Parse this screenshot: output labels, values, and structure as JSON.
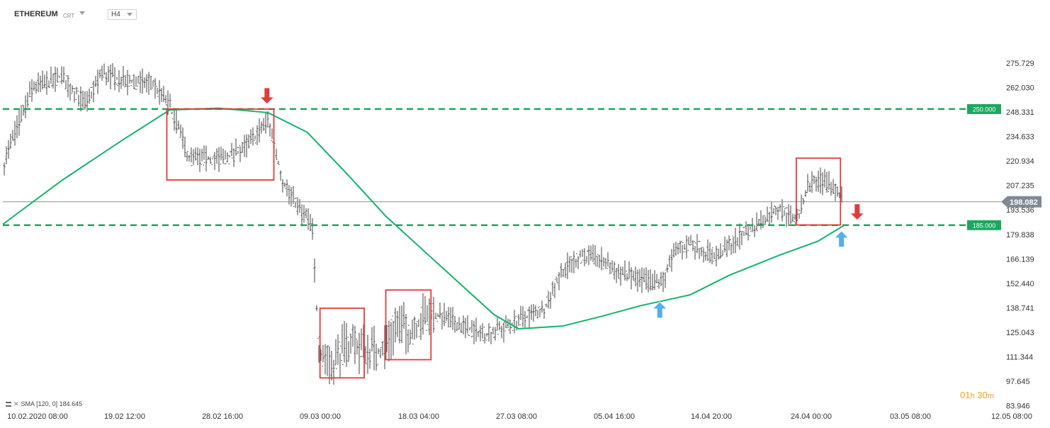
{
  "header": {
    "symbol": "ETHEREUM",
    "source": "CRT",
    "timeframe": "H4"
  },
  "indicator": {
    "label": "SMA",
    "params": "[120, 0]",
    "value": "184.645"
  },
  "timer": {
    "hours": "01",
    "hours_unit": "h",
    "minutes": "30",
    "minutes_unit": "m"
  },
  "colors": {
    "candles": "#404040",
    "sma": "#14b36b",
    "levels": "#1aa85f",
    "boxes": "#e23b3b",
    "arrow_up": "#55aef0",
    "arrow_down": "#e23b3b",
    "timer": "#f0a020"
  },
  "chart_data": {
    "type": "candlestick",
    "instrument": "ETHEREUM",
    "timeframe": "H4",
    "ylim": [
      83.946,
      289.428
    ],
    "y_ticks": [
      "275.729",
      "262.030",
      "248.331",
      "234.633",
      "220.934",
      "207.235",
      "193.536",
      "179.838",
      "166.139",
      "152.440",
      "138.741",
      "125.043",
      "111.344",
      "97.645",
      "83.946"
    ],
    "x_ticks": [
      "10.02.2020  08:00",
      "19.02  12:00",
      "28.02  16:00",
      "09.03  00:00",
      "18.03  04:00",
      "27.03  08:00",
      "05.04  16:00",
      "14.04  20:00",
      "24.04  00:00",
      "03.05  08:00",
      "12.05  08:00"
    ],
    "current_price": "198.082",
    "levels": [
      {
        "label": "250.000",
        "value": 250.0
      },
      {
        "label": "185.000",
        "value": 185.0
      }
    ],
    "sma": {
      "name": "SMA [120, 0]",
      "last": 184.645,
      "points": [
        [
          0,
          185.5
        ],
        [
          0.06,
          210
        ],
        [
          0.12,
          232
        ],
        [
          0.17,
          249.5
        ],
        [
          0.22,
          250.5
        ],
        [
          0.27,
          248
        ],
        [
          0.31,
          237
        ],
        [
          0.35,
          214
        ],
        [
          0.39,
          190
        ],
        [
          0.43,
          170
        ],
        [
          0.47,
          150
        ],
        [
          0.5,
          135
        ],
        [
          0.525,
          127
        ],
        [
          0.57,
          128.5
        ],
        [
          0.61,
          134
        ],
        [
          0.65,
          140
        ],
        [
          0.7,
          146
        ],
        [
          0.74,
          157
        ],
        [
          0.79,
          168
        ],
        [
          0.83,
          176
        ],
        [
          0.857,
          185
        ]
      ]
    },
    "bands": [
      {
        "t": 0.0,
        "price": 218
      },
      {
        "t": 0.03,
        "price": 262
      },
      {
        "t": 0.06,
        "price": 268
      },
      {
        "t": 0.085,
        "price": 252
      },
      {
        "t": 0.1,
        "price": 270
      },
      {
        "t": 0.13,
        "price": 265
      },
      {
        "t": 0.15,
        "price": 265
      },
      {
        "t": 0.17,
        "price": 252
      },
      {
        "t": 0.19,
        "price": 222
      },
      {
        "t": 0.21,
        "price": 222
      },
      {
        "t": 0.23,
        "price": 223
      },
      {
        "t": 0.25,
        "price": 230
      },
      {
        "t": 0.27,
        "price": 244
      },
      {
        "t": 0.285,
        "price": 210
      },
      {
        "t": 0.3,
        "price": 195
      },
      {
        "t": 0.315,
        "price": 185
      },
      {
        "t": 0.322,
        "price": 115
      },
      {
        "t": 0.335,
        "price": 108
      },
      {
        "t": 0.355,
        "price": 120
      },
      {
        "t": 0.37,
        "price": 115
      },
      {
        "t": 0.385,
        "price": 114
      },
      {
        "t": 0.4,
        "price": 130
      },
      {
        "t": 0.415,
        "price": 125
      },
      {
        "t": 0.43,
        "price": 134
      },
      {
        "t": 0.45,
        "price": 134
      },
      {
        "t": 0.47,
        "price": 128
      },
      {
        "t": 0.49,
        "price": 124
      },
      {
        "t": 0.51,
        "price": 127
      },
      {
        "t": 0.53,
        "price": 133
      },
      {
        "t": 0.55,
        "price": 137
      },
      {
        "t": 0.57,
        "price": 160
      },
      {
        "t": 0.59,
        "price": 168
      },
      {
        "t": 0.61,
        "price": 165
      },
      {
        "t": 0.63,
        "price": 158
      },
      {
        "t": 0.65,
        "price": 155
      },
      {
        "t": 0.67,
        "price": 152
      },
      {
        "t": 0.685,
        "price": 170
      },
      {
        "t": 0.7,
        "price": 175
      },
      {
        "t": 0.715,
        "price": 170
      },
      {
        "t": 0.73,
        "price": 168
      },
      {
        "t": 0.745,
        "price": 176
      },
      {
        "t": 0.76,
        "price": 182
      },
      {
        "t": 0.775,
        "price": 189
      },
      {
        "t": 0.79,
        "price": 195
      },
      {
        "t": 0.8,
        "price": 190
      },
      {
        "t": 0.81,
        "price": 188
      },
      {
        "t": 0.82,
        "price": 208
      },
      {
        "t": 0.83,
        "price": 210
      },
      {
        "t": 0.845,
        "price": 207
      },
      {
        "t": 0.855,
        "price": 200
      }
    ],
    "boxes": [
      {
        "t0": 0.167,
        "t1": 0.276,
        "low": 210.3,
        "high": 250.0
      },
      {
        "t0": 0.323,
        "t1": 0.368,
        "low": 99.5,
        "high": 138.5
      },
      {
        "t0": 0.39,
        "t1": 0.436,
        "low": 109.7,
        "high": 148.7
      },
      {
        "t0": 0.808,
        "t1": 0.853,
        "low": 185.1,
        "high": 222.5
      }
    ],
    "markers": [
      {
        "dir": "down",
        "t": 0.269,
        "price": 250.0
      },
      {
        "dir": "up",
        "t": 0.669,
        "price": 145.3
      },
      {
        "dir": "up",
        "t": 0.854,
        "price": 185.0
      },
      {
        "dir": "down",
        "t": 0.87,
        "price": 185.0
      }
    ]
  }
}
